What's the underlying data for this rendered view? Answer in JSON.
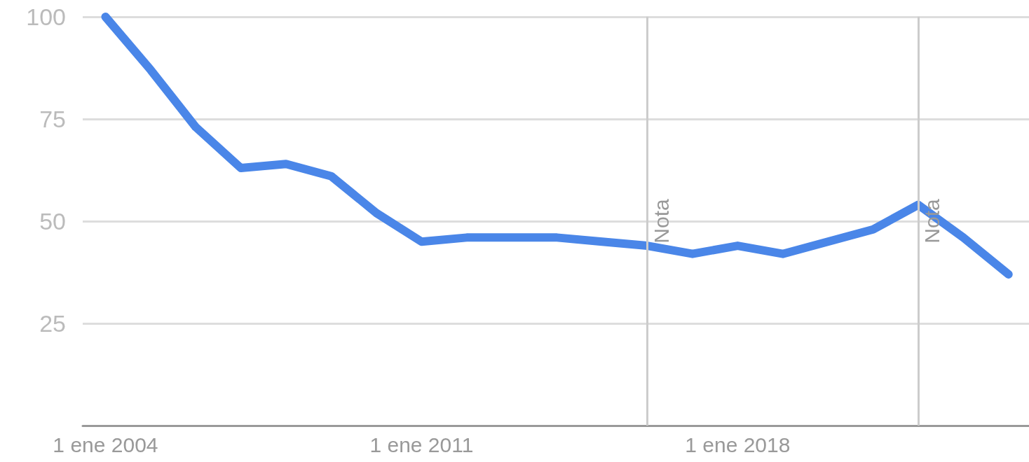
{
  "chart_data": {
    "type": "line",
    "x": [
      "2004-01-01",
      "2005-01-01",
      "2006-01-01",
      "2007-01-01",
      "2008-01-01",
      "2009-01-01",
      "2010-01-01",
      "2011-01-01",
      "2012-01-01",
      "2013-01-01",
      "2014-01-01",
      "2015-01-01",
      "2016-01-01",
      "2017-01-01",
      "2018-01-01",
      "2019-01-01",
      "2020-01-01",
      "2021-01-01",
      "2022-01-01",
      "2023-01-01",
      "2024-01-01"
    ],
    "series": [
      {
        "color": "#4a86e8",
        "values": [
          100,
          87,
          73,
          63,
          64,
          61,
          52,
          45,
          46,
          46,
          46,
          45,
          44,
          42,
          44,
          42,
          45,
          48,
          54,
          46,
          37
        ]
      }
    ],
    "xlim": [
      "2003-07-01",
      "2024-06-15"
    ],
    "xticks": [
      {
        "value": "2004-01-01",
        "label": "1 ene 2004"
      },
      {
        "value": "2011-01-01",
        "label": "1 ene 2011"
      },
      {
        "value": "2018-01-01",
        "label": "1 ene 2018"
      }
    ],
    "ylim": [
      0,
      100
    ],
    "yticks": [
      25,
      50,
      75,
      100
    ],
    "grid": "y",
    "line_style": "solid",
    "ref_lines": [
      {
        "axis": "x",
        "value": "2016-01-01",
        "label": "Nota",
        "color": "#cccccc"
      },
      {
        "axis": "x",
        "value": "2022-01-01",
        "label": "Nota",
        "color": "#cccccc"
      }
    ]
  }
}
